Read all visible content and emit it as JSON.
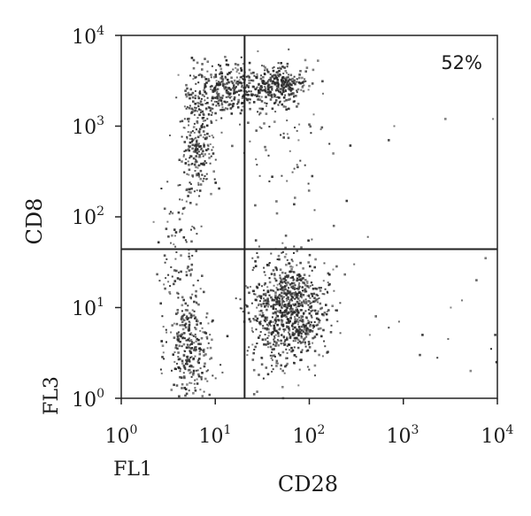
{
  "chart_data": {
    "type": "scatter",
    "title": "",
    "xlabel": "CD28",
    "ylabel": "CD8",
    "x_channel": "FL1",
    "y_channel": "FL3",
    "xscale": "log",
    "yscale": "log",
    "xlim": [
      1,
      10000
    ],
    "ylim": [
      1,
      10000
    ],
    "x_ticks": [
      {
        "base": "10",
        "exp": "0"
      },
      {
        "base": "10",
        "exp": "1"
      },
      {
        "base": "10",
        "exp": "2"
      },
      {
        "base": "10",
        "exp": "3"
      },
      {
        "base": "10",
        "exp": "4"
      }
    ],
    "y_ticks": [
      {
        "base": "10",
        "exp": "0"
      },
      {
        "base": "10",
        "exp": "1"
      },
      {
        "base": "10",
        "exp": "2"
      },
      {
        "base": "10",
        "exp": "3"
      },
      {
        "base": "10",
        "exp": "4"
      }
    ],
    "quadrant_gates": {
      "x": 20.5,
      "y": 44
    },
    "annotation": {
      "text": "52%",
      "position": "top-right"
    },
    "point_color": "#2b2b2b",
    "populations": [
      {
        "cx": 5.5,
        "cy": 3.5,
        "sx": 0.12,
        "sy": 0.32,
        "n": 300
      },
      {
        "cx": 6.5,
        "cy": 700,
        "sx": 0.09,
        "sy": 0.3,
        "n": 260
      },
      {
        "cx": 14,
        "cy": 2500,
        "sx": 0.2,
        "sy": 0.14,
        "n": 330
      },
      {
        "cx": 48,
        "cy": 2800,
        "sx": 0.15,
        "sy": 0.12,
        "n": 300
      },
      {
        "cx": 60,
        "cy": 9,
        "sx": 0.2,
        "sy": 0.3,
        "n": 900
      },
      {
        "cx": 4.2,
        "cy": 40,
        "sx": 0.1,
        "sy": 0.35,
        "n": 90
      },
      {
        "cx": 60,
        "cy": 500,
        "sx": 0.25,
        "sy": 0.35,
        "n": 60
      }
    ],
    "sparse_points": [
      [
        440,
        5
      ],
      [
        510,
        8
      ],
      [
        700,
        6
      ],
      [
        900,
        7
      ],
      [
        1600,
        5
      ],
      [
        2300,
        2.8
      ],
      [
        3000,
        4.5
      ],
      [
        4200,
        12
      ],
      [
        6000,
        20
      ],
      [
        7500,
        35
      ],
      [
        8600,
        3.5
      ],
      [
        9500,
        5
      ],
      [
        9800,
        2.5
      ],
      [
        800,
        1000
      ],
      [
        2800,
        1200
      ],
      [
        9000,
        1200
      ],
      [
        700,
        700
      ],
      [
        1500,
        3
      ],
      [
        5200,
        2
      ],
      [
        300,
        30
      ],
      [
        420,
        60
      ],
      [
        250,
        150
      ],
      [
        180,
        500
      ],
      [
        3200,
        10
      ]
    ]
  }
}
